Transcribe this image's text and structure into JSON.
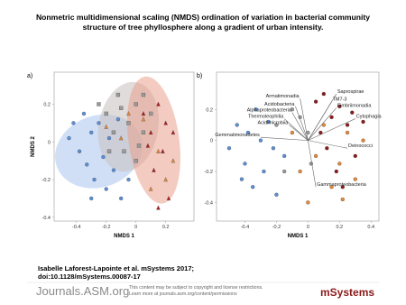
{
  "title": [
    "Nonmetric multidimensional scaling (NMDS) ordination of variation in bacterial community",
    "structure of tree phyllosphere along a gradient of urban intensity."
  ],
  "chart_data": [
    {
      "type": "scatter",
      "label": "a)",
      "xlabel": "NMDS 1",
      "ylabel": "NMDS 2",
      "xlim": [
        -0.55,
        0.39
      ],
      "ylim": [
        -0.42,
        0.37
      ],
      "xticks": [
        -0.4,
        -0.2,
        0,
        0.2
      ],
      "yticks": [
        -0.4,
        -0.2,
        0,
        0.2
      ],
      "ellipses": [
        {
          "color": "#a9c4ee",
          "cx": -0.25,
          "cy": -0.05,
          "rx": 0.3,
          "ry": 0.19,
          "angle": -20
        },
        {
          "color": "#c8c0c0",
          "cx": -0.05,
          "cy": 0.08,
          "rx": 0.2,
          "ry": 0.24,
          "angle": 10
        },
        {
          "color": "#e9a08e",
          "cx": 0.12,
          "cy": 0.01,
          "rx": 0.17,
          "ry": 0.34,
          "angle": -8
        }
      ],
      "series": [
        {
          "color": "#5b8fd6",
          "marker": "circle",
          "x": [
            -0.45,
            -0.42,
            -0.38,
            -0.35,
            -0.33,
            -0.3,
            -0.28,
            -0.25,
            -0.22,
            -0.2,
            -0.18,
            -0.15,
            -0.12,
            -0.1,
            -0.3,
            -0.05
          ],
          "values": [
            0.02,
            0.1,
            -0.05,
            0.15,
            -0.12,
            0.05,
            -0.2,
            0.1,
            -0.08,
            -0.25,
            0.02,
            -0.15,
            0.12,
            -0.3,
            -0.3,
            -0.2
          ]
        },
        {
          "color": "#9a9a9a",
          "marker": "square",
          "x": [
            -0.25,
            -0.2,
            -0.15,
            -0.1,
            -0.05,
            0,
            0.05,
            -0.08,
            0,
            0.05,
            0.1,
            -0.12,
            0.02,
            -0.18
          ],
          "values": [
            0.2,
            0.15,
            0.05,
            0.18,
            0.1,
            0.2,
            0.05,
            -0.05,
            -0.1,
            0.25,
            0.15,
            0.25,
            -0.02,
            -0.05
          ]
        },
        {
          "color": "#e08a3c",
          "marker": "triangle",
          "x": [
            -0.2,
            -0.1,
            0.05,
            0.15,
            0.2,
            0.25,
            0.1,
            -0.05
          ],
          "values": [
            0.08,
            0.02,
            0.12,
            -0.05,
            -0.2,
            -0.1,
            -0.25,
            0.15
          ]
        },
        {
          "color": "#b01c1c",
          "marker": "triangle",
          "x": [
            0.05,
            0.1,
            0.15,
            0.2,
            0.12,
            0.18,
            0.22,
            0.08,
            0.15,
            0.25
          ],
          "values": [
            0.15,
            0.05,
            0.2,
            0.1,
            -0.15,
            -0.05,
            -0.3,
            -0.02,
            -0.35,
            0.05
          ]
        }
      ]
    },
    {
      "type": "scatter",
      "label": "b)",
      "xlabel": "NMDS 1",
      "xlim": [
        -0.58,
        0.45
      ],
      "ylim": [
        -0.52,
        0.44
      ],
      "xticks": [
        -0.4,
        -0.2,
        0,
        0.2,
        0.4
      ],
      "yticks": [
        -0.4,
        -0.2,
        0,
        0.2
      ],
      "series": [
        {
          "color": "#5b8fd6",
          "marker": "circle",
          "x": [
            -0.5,
            -0.45,
            -0.4,
            -0.38,
            -0.35,
            -0.3,
            -0.28,
            -0.25,
            -0.2,
            -0.15,
            -0.42,
            -0.33,
            -0.22
          ],
          "values": [
            -0.05,
            0.1,
            -0.15,
            0.05,
            -0.3,
            0.0,
            -0.2,
            0.12,
            -0.35,
            -0.1,
            -0.25,
            0.2,
            -0.05
          ]
        },
        {
          "color": "#e08a3c",
          "marker": "circle",
          "x": [
            -0.1,
            -0.05,
            0.05,
            0.1,
            0.15,
            0.2,
            0.25,
            0.3,
            0.35,
            0.0,
            0.22
          ],
          "values": [
            0.05,
            -0.2,
            -0.1,
            0.1,
            -0.3,
            -0.15,
            0.05,
            -0.25,
            0.0,
            -0.4,
            -0.38
          ]
        },
        {
          "color": "#8b1a1a",
          "marker": "circle",
          "x": [
            0.05,
            0.1,
            0.15,
            0.2,
            0.25,
            0.3,
            0.12,
            0.18,
            0.28,
            0.35,
            0.08,
            0.22
          ],
          "values": [
            0.25,
            0.3,
            0.15,
            0.22,
            0.1,
            -0.1,
            -0.05,
            -0.2,
            0.18,
            0.12,
            0.05,
            -0.3
          ]
        },
        {
          "color": "#9a9a9a",
          "marker": "circle",
          "x": [
            -0.2,
            -0.1,
            -0.05,
            0.0,
            -0.15,
            0.02
          ],
          "values": [
            0.1,
            0.2,
            0.15,
            0.05,
            -0.2,
            -0.15
          ]
        }
      ],
      "vectors": [
        {
          "name": "Saprospirae",
          "x": 0.18,
          "y": 0.3
        },
        {
          "name": "Armatimonadia",
          "x": -0.05,
          "y": 0.27
        },
        {
          "name": "TM7-3",
          "x": 0.15,
          "y": 0.25
        },
        {
          "name": "Acidobacteria",
          "x": -0.08,
          "y": 0.22
        },
        {
          "name": "Fimbriimonadia",
          "x": 0.18,
          "y": 0.21
        },
        {
          "name": "Alphaproteobacteria",
          "x": -0.1,
          "y": 0.18
        },
        {
          "name": "Cytophagia",
          "x": 0.3,
          "y": 0.14
        },
        {
          "name": "Thermoleophilia",
          "x": -0.15,
          "y": 0.14
        },
        {
          "name": "Acidimicrobiia",
          "x": -0.12,
          "y": 0.1
        },
        {
          "name": "Gemmatimonadetes",
          "x": -0.3,
          "y": 0.02
        },
        {
          "name": "Deinococci",
          "x": 0.25,
          "y": -0.05
        },
        {
          "name": "Gammaproteobacteria",
          "x": 0.05,
          "y": -0.3
        }
      ]
    }
  ],
  "citation": [
    "Isabelle Laforest-Lapointe et al. mSystems 2017;",
    "doi:10.1128/mSystems.00087-17"
  ],
  "footer": {
    "site": "Journals.ASM.org",
    "notice": [
      "This content may be subject to copyright and license restrictions.",
      "Learn more at journals.asm.org/content/permissions"
    ],
    "logo": "mSystems"
  }
}
